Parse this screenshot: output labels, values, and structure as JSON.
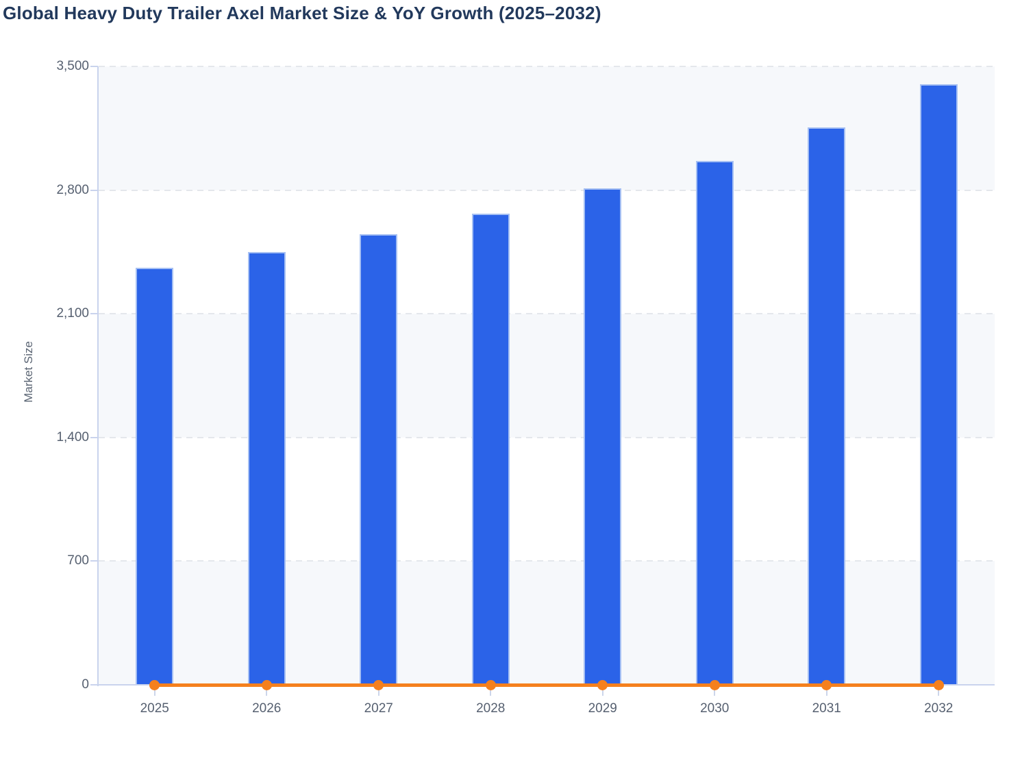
{
  "title": "Global Heavy Duty Trailer Axel Market Size & YoY Growth (2025–2032)",
  "chart_data": {
    "type": "bar",
    "title": "Global Heavy Duty Trailer Axel Market Size & YoY Growth (2025–2032)",
    "categories": [
      "2025",
      "2026",
      "2027",
      "2028",
      "2029",
      "2030",
      "2031",
      "2032"
    ],
    "series": [
      {
        "name": "Market Size",
        "type": "bar",
        "color": "#2b63e8",
        "border_color": "#a6c0f3",
        "values": [
          2360,
          2450,
          2550,
          2665,
          2810,
          2965,
          3155,
          3400
        ]
      },
      {
        "name": "YoY Growth",
        "type": "line",
        "color": "#f5801d",
        "values": [
          0,
          0,
          0,
          0,
          0,
          0,
          0,
          0
        ],
        "note": "Line with round markers rendered flat on the zero baseline of the left axis"
      }
    ],
    "xlabel": "",
    "ylabel": "Market Size",
    "ylim": [
      0,
      3500
    ],
    "ytick_labels": [
      "3,500",
      "2,800",
      "2,100",
      "1,400",
      "700",
      "0"
    ],
    "grid": "horizontal dashed gridlines with alternating row bands",
    "legend": "none",
    "colors": {
      "band": "#f6f8fb",
      "gridline": "#e4e7ec",
      "axis_line": "#c9d3ed",
      "tick_text": "#566070",
      "title_text": "#22395c"
    }
  }
}
